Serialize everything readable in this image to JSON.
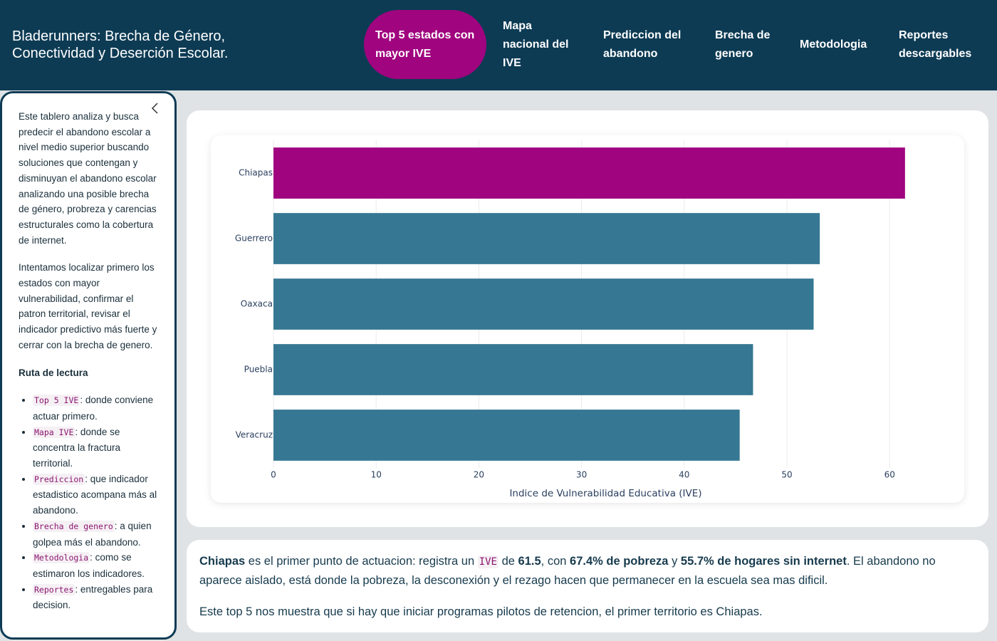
{
  "header": {
    "title_lines": [
      "Bladerunners: Brecha de Género,",
      "Conectividad y Deserción Escolar."
    ]
  },
  "nav": {
    "items": [
      "Top 5 estados con mayor IVE",
      "Mapa nacional del IVE",
      "Prediccion del abandono",
      "Brecha de genero",
      "Metodologia",
      "Reportes descargables"
    ],
    "active": 0
  },
  "sidebar": {
    "paragraphs": [
      "Este tablero analiza y busca predecir el abandono escolar a nivel medio superior buscando soluciones que contengan y disminuyan el abandono escolar analizando una posible brecha de género, probreza y carencias estructurales como la cobertura de internet.",
      "Intentamos localizar primero los estados con mayor vulnerabilidad, confirmar el patron territorial, revisar el indicador predictivo más fuerte y cerrar con la brecha de genero."
    ],
    "heading": "Ruta de lectura",
    "items": [
      {
        "code": "Top 5 IVE",
        "text": ": donde conviene actuar primero."
      },
      {
        "code": "Mapa IVE",
        "text": ": donde se concentra la fractura territorial."
      },
      {
        "code": "Prediccion",
        "text": ": que indicador estadistico acompana más al abandono."
      },
      {
        "code": "Brecha de genero",
        "text": ": a quien golpea más el abandono."
      },
      {
        "code": "Metodologia",
        "text": ": como se estimaron los indicadores."
      },
      {
        "code": "Reportes",
        "text": ": entregables para decision."
      }
    ]
  },
  "chart_data": {
    "type": "bar",
    "orientation": "horizontal",
    "categories": [
      "Chiapas",
      "Guerrero",
      "Oaxaca",
      "Puebla",
      "Veracruz"
    ],
    "values": [
      61.5,
      53.2,
      52.6,
      46.7,
      45.4
    ],
    "colors": [
      "#a0047f",
      "#367893",
      "#367893",
      "#367893",
      "#367893"
    ],
    "x_label": "Indice de Vulnerabilidad Educativa (IVE)",
    "xlim": [
      0,
      64.7
    ],
    "xticks": [
      0,
      10,
      20,
      30,
      40,
      50,
      60
    ],
    "grid": true
  },
  "summary": {
    "paragraphs": [
      [
        {
          "text": "Chiapas",
          "bold": true
        },
        {
          "text": " es el primer punto de actuacion: registra un "
        },
        {
          "text": "IVE",
          "code": true
        },
        {
          "text": " de "
        },
        {
          "text": "61.5",
          "bold": true
        },
        {
          "text": ", con "
        },
        {
          "text": "67.4% de pobreza",
          "bold": true
        },
        {
          "text": " y "
        },
        {
          "text": "55.7% de hogares sin internet",
          "bold": true
        },
        {
          "text": ". El abandono no aparece aislado, está donde la pobreza, la desconexión y el rezago hacen que permanecer en la escuela sea mas dificil."
        }
      ],
      [
        {
          "text": "Este top 5 nos muestra que si hay que iniciar programas pilotos de retencion, el primer territorio es Chiapas."
        }
      ]
    ]
  }
}
